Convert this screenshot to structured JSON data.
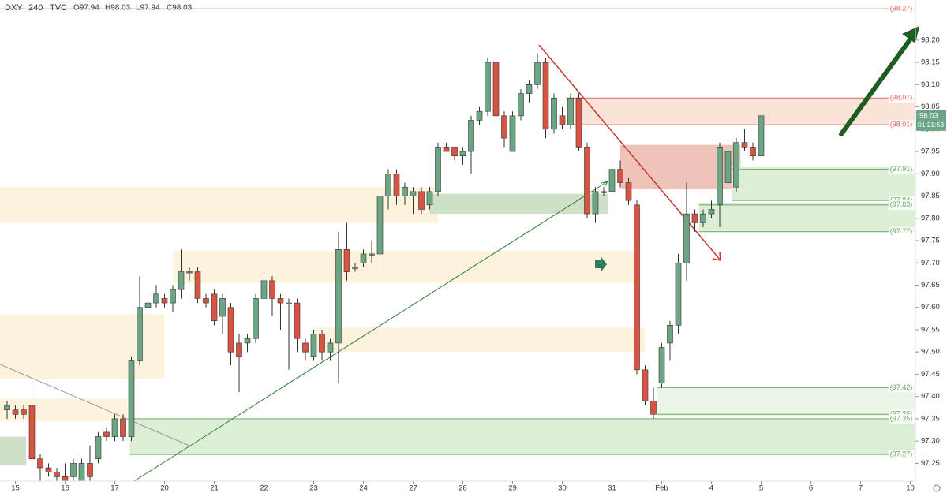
{
  "chart_data": {
    "type": "candlestick",
    "symbol": "DXY",
    "interval": "240",
    "source": "TVC",
    "ohlc_legend": [
      "O97.94",
      "H98.03",
      "L97.94",
      "C98.03"
    ],
    "last_price": 98.03,
    "countdown": "01:21:53",
    "up_color": "#6ba583",
    "down_color": "#d75442",
    "xlim": [
      -0.857,
      109.62
    ],
    "ylim": [
      97.21,
      98.29
    ],
    "xticks": [
      {
        "value": 1,
        "label": "15"
      },
      {
        "value": 7,
        "label": "16"
      },
      {
        "value": 13,
        "label": "17"
      },
      {
        "value": 19,
        "label": "20"
      },
      {
        "value": 25,
        "label": "21"
      },
      {
        "value": 31,
        "label": "22"
      },
      {
        "value": 37,
        "label": "23"
      },
      {
        "value": 43,
        "label": "24"
      },
      {
        "value": 49,
        "label": "27"
      },
      {
        "value": 55,
        "label": "28"
      },
      {
        "value": 61,
        "label": "29"
      },
      {
        "value": 67,
        "label": "30"
      },
      {
        "value": 73,
        "label": "31"
      },
      {
        "value": 79,
        "label": "Feb"
      },
      {
        "value": 85,
        "label": "4"
      },
      {
        "value": 91,
        "label": "5"
      },
      {
        "value": 97,
        "label": "6"
      },
      {
        "value": 103,
        "label": "7"
      },
      {
        "value": 109,
        "label": "10"
      }
    ],
    "yticks": [
      {
        "value": 98.2,
        "label": "98.20"
      },
      98.15,
      {
        "value": 98.1,
        "label": "98.10"
      },
      98.05,
      {
        "value": 98.0,
        "label": "98.00"
      },
      97.95,
      {
        "value": 97.9,
        "label": "97.90"
      },
      97.85,
      {
        "value": 97.8,
        "label": "97.80"
      },
      97.75,
      {
        "value": 97.7,
        "label": "97.70"
      },
      97.65,
      {
        "value": 97.6,
        "label": "97.60"
      },
      97.55,
      {
        "value": 97.5,
        "label": "97.50"
      },
      97.45,
      {
        "value": 97.4,
        "label": "97.40"
      },
      97.35,
      {
        "value": 97.3,
        "label": "97.30"
      },
      97.25
    ],
    "x": [
      0,
      1,
      2,
      3,
      4,
      5,
      6,
      7,
      8,
      9,
      10,
      11,
      12,
      13,
      14,
      15,
      16,
      17,
      18,
      19,
      20,
      21,
      22,
      23,
      24,
      25,
      26,
      27,
      28,
      29,
      30,
      31,
      32,
      33,
      34,
      35,
      36,
      37,
      38,
      39,
      40,
      41,
      42,
      43,
      44,
      45,
      46,
      47,
      48,
      49,
      50,
      51,
      52,
      53,
      54,
      55,
      56,
      57,
      58,
      59,
      60,
      61,
      62,
      63,
      64,
      65,
      66,
      67,
      68,
      69,
      70,
      71,
      72,
      73,
      74,
      75,
      76,
      77,
      78,
      79,
      80,
      81,
      82,
      83,
      84,
      85,
      86,
      87,
      88,
      89,
      90,
      91
    ],
    "ohlc": [
      [
        97.37,
        97.39,
        97.35,
        97.38
      ],
      [
        97.37,
        97.38,
        97.35,
        97.36
      ],
      [
        97.37,
        97.38,
        97.35,
        97.36
      ],
      [
        97.38,
        97.44,
        97.25,
        97.26
      ],
      [
        97.26,
        97.27,
        97.21,
        97.24
      ],
      [
        97.24,
        97.25,
        97.22,
        97.23
      ],
      [
        97.23,
        97.24,
        97.21,
        97.22
      ],
      [
        97.22,
        97.25,
        97.21,
        97.21
      ],
      [
        97.22,
        97.26,
        97.21,
        97.25
      ],
      [
        97.21,
        97.26,
        97.21,
        97.25
      ],
      [
        97.25,
        97.29,
        97.21,
        97.22
      ],
      [
        97.26,
        97.32,
        97.25,
        97.31
      ],
      [
        97.32,
        97.33,
        97.3,
        97.31
      ],
      [
        97.31,
        97.36,
        97.3,
        97.35
      ],
      [
        97.35,
        97.36,
        97.3,
        97.31
      ],
      [
        97.31,
        97.49,
        97.3,
        97.48
      ],
      [
        97.48,
        97.67,
        97.47,
        97.6
      ],
      [
        97.6,
        97.63,
        97.58,
        97.61
      ],
      [
        97.61,
        97.65,
        97.6,
        97.63
      ],
      [
        97.62,
        97.63,
        97.6,
        97.61
      ],
      [
        97.61,
        97.65,
        97.59,
        97.64
      ],
      [
        97.64,
        97.73,
        97.62,
        97.68
      ],
      [
        97.68,
        97.69,
        97.66,
        97.68
      ],
      [
        97.68,
        97.69,
        97.61,
        97.62
      ],
      [
        97.62,
        97.63,
        97.6,
        97.61
      ],
      [
        97.63,
        97.64,
        97.56,
        97.57
      ],
      [
        97.58,
        97.63,
        97.54,
        97.62
      ],
      [
        97.6,
        97.61,
        97.47,
        97.5
      ],
      [
        97.52,
        97.54,
        97.41,
        97.49
      ],
      [
        97.52,
        97.54,
        97.5,
        97.53
      ],
      [
        97.53,
        97.63,
        97.52,
        97.62
      ],
      [
        97.62,
        97.68,
        97.6,
        97.66
      ],
      [
        97.66,
        97.67,
        97.58,
        97.62
      ],
      [
        97.62,
        97.63,
        97.55,
        97.61
      ],
      [
        97.61,
        97.62,
        97.46,
        97.61
      ],
      [
        97.61,
        97.62,
        97.5,
        97.53
      ],
      [
        97.52,
        97.53,
        97.48,
        97.5
      ],
      [
        97.49,
        97.55,
        97.48,
        97.54
      ],
      [
        97.54,
        97.55,
        97.48,
        97.5
      ],
      [
        97.5,
        97.53,
        97.48,
        97.52
      ],
      [
        97.52,
        97.77,
        97.43,
        97.73
      ],
      [
        97.73,
        97.79,
        97.66,
        97.68
      ],
      [
        97.69,
        97.7,
        97.68,
        97.69
      ],
      [
        97.7,
        97.73,
        97.69,
        97.72
      ],
      [
        97.72,
        97.75,
        97.7,
        97.72
      ],
      [
        97.72,
        97.86,
        97.67,
        97.85
      ],
      [
        97.85,
        97.91,
        97.82,
        97.9
      ],
      [
        97.9,
        97.91,
        97.83,
        97.85
      ],
      [
        97.85,
        97.88,
        97.83,
        97.87
      ],
      [
        97.85,
        97.87,
        97.81,
        97.86
      ],
      [
        97.86,
        97.87,
        97.81,
        97.82
      ],
      [
        97.83,
        97.87,
        97.82,
        97.86
      ],
      [
        97.86,
        97.97,
        97.85,
        97.96
      ],
      [
        97.96,
        97.97,
        97.95,
        97.95
      ],
      [
        97.96,
        97.96,
        97.93,
        97.94
      ],
      [
        97.94,
        97.96,
        97.92,
        97.95
      ],
      [
        97.95,
        98.03,
        97.9,
        98.02
      ],
      [
        98.02,
        98.05,
        98.01,
        98.04
      ],
      [
        98.04,
        98.16,
        98.03,
        98.15
      ],
      [
        98.15,
        98.16,
        98.02,
        98.03
      ],
      [
        98.03,
        98.04,
        97.96,
        97.98
      ],
      [
        97.95,
        98.04,
        97.95,
        98.03
      ],
      [
        98.03,
        98.09,
        98.02,
        98.08
      ],
      [
        98.08,
        98.11,
        98.06,
        98.1
      ],
      [
        98.1,
        98.17,
        98.09,
        98.15
      ],
      [
        98.15,
        98.16,
        97.98,
        98.0
      ],
      [
        98.0,
        98.08,
        97.99,
        98.07
      ],
      [
        98.03,
        98.05,
        98.0,
        98.01
      ],
      [
        98.01,
        98.08,
        98.0,
        98.07
      ],
      [
        98.07,
        98.08,
        97.95,
        97.96
      ],
      [
        97.96,
        97.97,
        97.8,
        97.81
      ],
      [
        97.81,
        97.87,
        97.79,
        97.86
      ],
      [
        97.86,
        97.87,
        97.85,
        97.86
      ],
      [
        97.86,
        97.92,
        97.85,
        97.91
      ],
      [
        97.91,
        97.93,
        97.87,
        97.88
      ],
      [
        97.88,
        97.89,
        97.83,
        97.84
      ],
      [
        97.83,
        97.84,
        97.45,
        97.46
      ],
      [
        97.46,
        97.47,
        97.38,
        97.39
      ],
      [
        97.39,
        97.42,
        97.35,
        97.36
      ],
      [
        97.43,
        97.52,
        97.42,
        97.51
      ],
      [
        97.52,
        97.57,
        97.48,
        97.56
      ],
      [
        97.56,
        97.72,
        97.54,
        97.7
      ],
      [
        97.7,
        97.88,
        97.66,
        97.81
      ],
      [
        97.81,
        97.82,
        97.77,
        97.79
      ],
      [
        97.79,
        97.82,
        97.78,
        97.81
      ],
      [
        97.81,
        97.84,
        97.8,
        97.82
      ],
      [
        97.83,
        97.97,
        97.78,
        97.96
      ],
      [
        97.88,
        97.97,
        97.86,
        97.95
      ],
      [
        97.87,
        97.98,
        97.86,
        97.97
      ],
      [
        97.97,
        98.0,
        97.95,
        97.96
      ],
      [
        97.96,
        97.97,
        97.93,
        97.94
      ],
      [
        97.94,
        98.03,
        97.94,
        98.03
      ]
    ],
    "zones": [
      {
        "from": 97.79,
        "to": 97.87,
        "start": -1,
        "end": 52,
        "color": "#fdf3dd"
      },
      {
        "from": 97.655,
        "to": 97.727,
        "start": 20,
        "end": 76,
        "color": "#fdf3dd"
      },
      {
        "from": 97.5,
        "to": 97.555,
        "start": 37,
        "end": 77,
        "color": "#fdf3dd"
      },
      {
        "from": 97.44,
        "to": 97.585,
        "start": -1,
        "end": 19,
        "color": "#fdf3dd"
      },
      {
        "from": 97.345,
        "to": 97.395,
        "start": -1,
        "end": 14.5,
        "color": "#fdf3dd"
      },
      {
        "from": 98.01,
        "to": 98.07,
        "start": 67.5,
        "color": "#fbe3da"
      },
      {
        "from": 97.865,
        "to": 97.965,
        "start": 74,
        "end": 88.5,
        "color": "#efc3b8"
      },
      {
        "from": 97.84,
        "to": 97.915,
        "start": 87.5,
        "color": "#dcefd6"
      },
      {
        "from": 97.77,
        "to": 97.835,
        "start": 83.5,
        "color": "#dcefd6"
      },
      {
        "from": 97.81,
        "to": 97.855,
        "start": 51,
        "end": 72.5,
        "color": "#cfe0c8"
      },
      {
        "from": 97.355,
        "to": 97.42,
        "start": 78.5,
        "color": "#eaf5e5"
      },
      {
        "from": 97.27,
        "to": 97.35,
        "start": 14.8,
        "color": "#dcefd6"
      },
      {
        "from": 97.245,
        "to": 97.31,
        "start": -1,
        "end": 2.3,
        "color": "#cfe0c8"
      }
    ],
    "levels": [
      {
        "value": 98.27,
        "label": "(98.27)",
        "start": -1,
        "color": "#e06666"
      },
      {
        "value": 98.07,
        "label": "(98.07)",
        "start": 67.5,
        "color": "#e06666"
      },
      {
        "value": 98.01,
        "label": "(98.01)",
        "start": 67.5,
        "color": "#e06666"
      },
      {
        "value": 97.91,
        "label": "(97.91)",
        "start": 87.5,
        "color": "#6aaa64"
      },
      {
        "value": 97.84,
        "label": "(97.84)",
        "start": 87.5,
        "color": "#6aaa64"
      },
      {
        "value": 97.83,
        "label": "(97.83)",
        "start": 83.5,
        "color": "#6aaa64"
      },
      {
        "value": 97.77,
        "label": "(97.77)",
        "start": 83.5,
        "color": "#6aaa64"
      },
      {
        "value": 97.42,
        "label": "(97.42)",
        "start": 78.5,
        "color": "#6aaa64"
      },
      {
        "value": 97.36,
        "label": "(97.36)",
        "start": 78.5,
        "color": "#6aaa64"
      },
      {
        "value": 97.35,
        "label": "(97.35)",
        "start": 14.8,
        "color": "#6aaa64"
      },
      {
        "value": 97.27,
        "label": "(97.27)",
        "start": 14.8,
        "color": "#6aaa64"
      }
    ]
  }
}
